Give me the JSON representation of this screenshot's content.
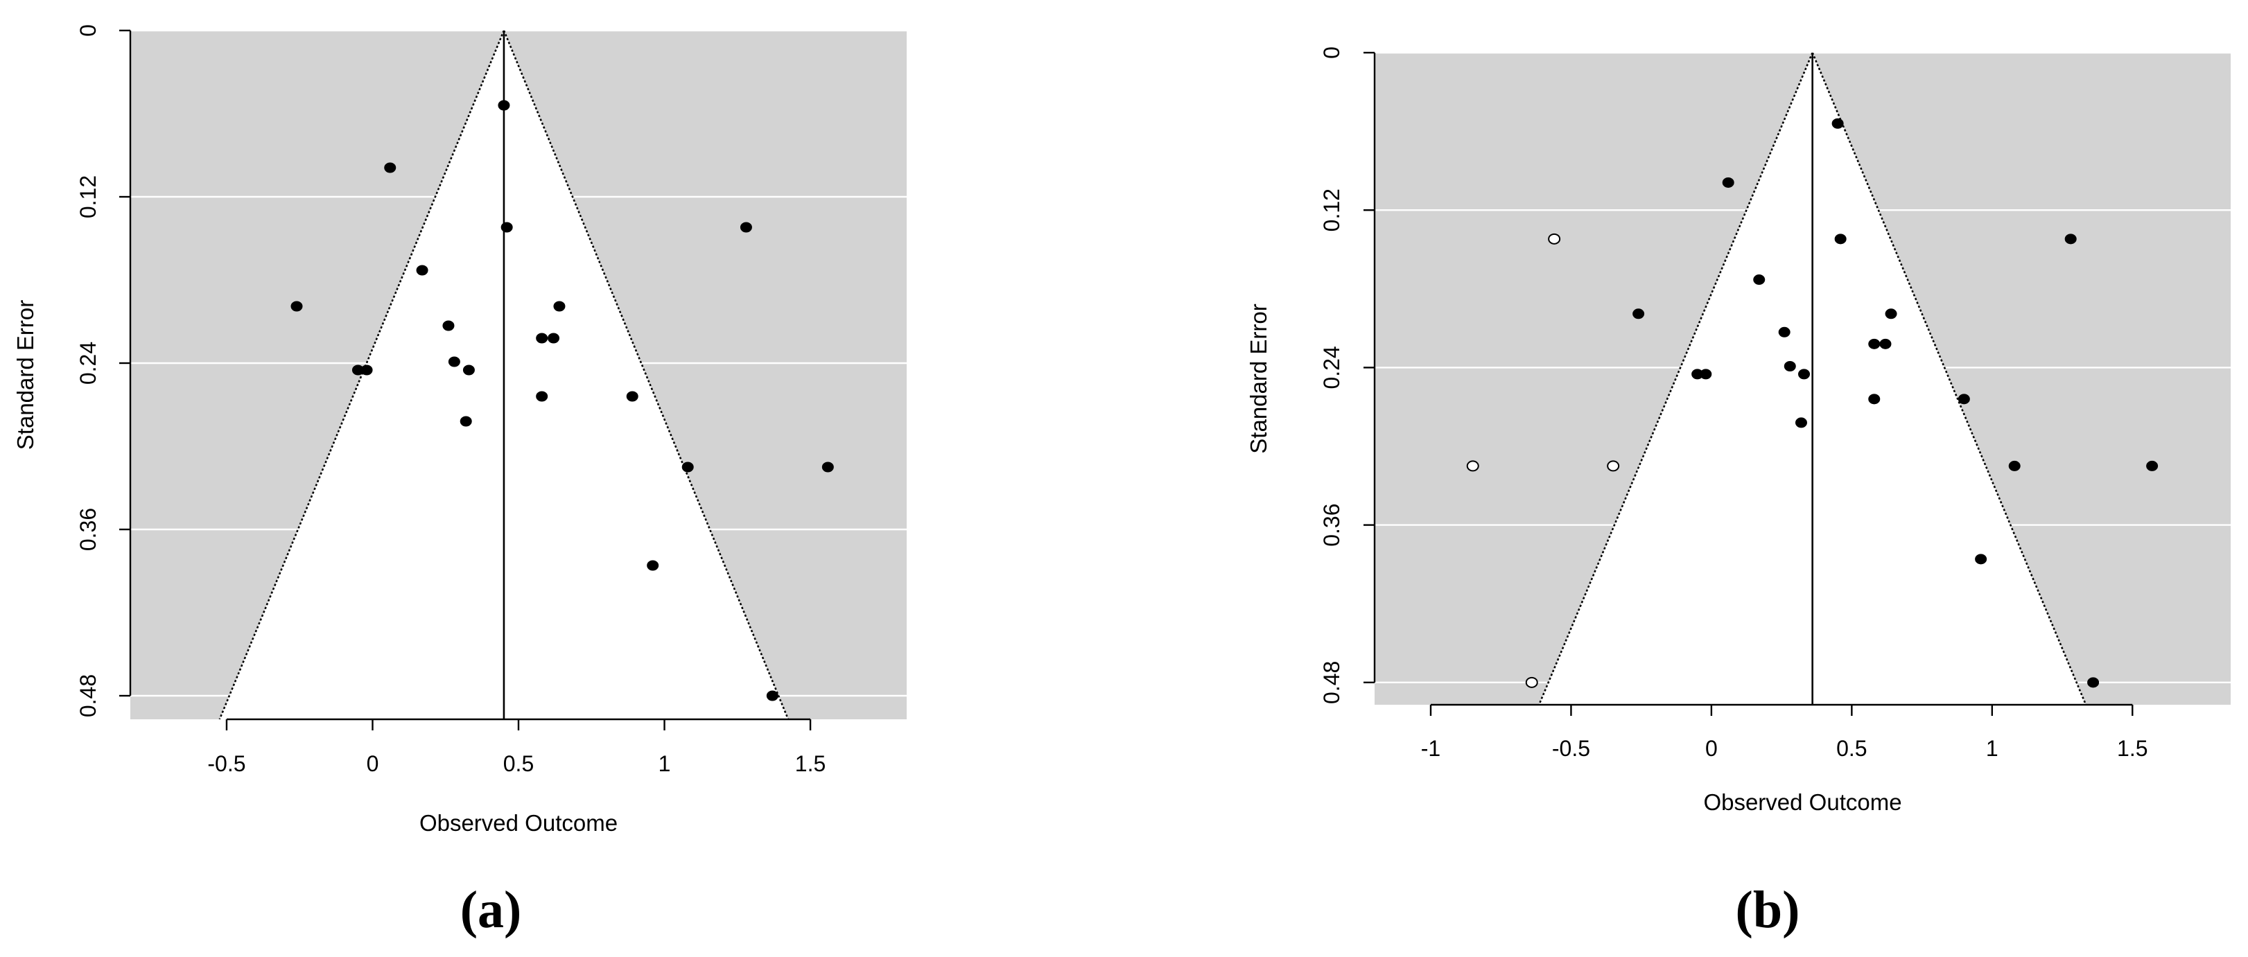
{
  "chart_data": [
    {
      "type": "scatter",
      "variant": "funnel",
      "panel_label": "(a)",
      "xlabel": "Observed Outcome",
      "ylabel": "Standard Error",
      "xlim": [
        -0.83,
        1.83
      ],
      "ylim": [
        0,
        0.497
      ],
      "y_reversed": true,
      "xticks": [
        -0.5,
        0,
        0.5,
        1,
        1.5
      ],
      "xtick_labels": [
        "-0.5",
        "0",
        "0.5",
        "1",
        "1.5"
      ],
      "yticks": [
        0,
        0.12,
        0.24,
        0.36,
        0.48
      ],
      "ytick_labels": [
        "0",
        "0.12",
        "0.24",
        "0.36",
        "0.48"
      ],
      "grid": "horizontal",
      "colors": {
        "background": "#d3d3d3",
        "funnel": "#ffffff",
        "observed": "#000000"
      },
      "funnel_center": 0.45,
      "funnel_z": 1.96,
      "series": [
        {
          "marker": "filled",
          "points": [
            {
              "x": 0.45,
              "y": 0.054
            },
            {
              "x": 0.06,
              "y": 0.099
            },
            {
              "x": 0.46,
              "y": 0.142
            },
            {
              "x": 1.28,
              "y": 0.142
            },
            {
              "x": 0.17,
              "y": 0.173
            },
            {
              "x": -0.26,
              "y": 0.199
            },
            {
              "x": 0.64,
              "y": 0.199
            },
            {
              "x": 0.26,
              "y": 0.213
            },
            {
              "x": 0.58,
              "y": 0.222
            },
            {
              "x": 0.62,
              "y": 0.222
            },
            {
              "x": 0.28,
              "y": 0.239
            },
            {
              "x": -0.05,
              "y": 0.245
            },
            {
              "x": -0.02,
              "y": 0.245
            },
            {
              "x": 0.33,
              "y": 0.245
            },
            {
              "x": 0.58,
              "y": 0.264
            },
            {
              "x": 0.89,
              "y": 0.264
            },
            {
              "x": 0.32,
              "y": 0.282
            },
            {
              "x": 1.08,
              "y": 0.315
            },
            {
              "x": 1.56,
              "y": 0.315
            },
            {
              "x": 0.96,
              "y": 0.386
            },
            {
              "x": 1.37,
              "y": 0.48
            }
          ]
        }
      ]
    },
    {
      "type": "scatter",
      "variant": "funnel",
      "panel_label": "(b)",
      "xlabel": "Observed Outcome",
      "ylabel": "Standard Error",
      "xlim": [
        -1.2,
        1.85
      ],
      "ylim": [
        0,
        0.497
      ],
      "y_reversed": true,
      "xticks": [
        -1,
        -0.5,
        0,
        0.5,
        1,
        1.5
      ],
      "xtick_labels": [
        "-1",
        "-0.5",
        "0",
        "0.5",
        "1",
        "1.5"
      ],
      "yticks": [
        0,
        0.12,
        0.24,
        0.36,
        0.48
      ],
      "ytick_labels": [
        "0",
        "0.12",
        "0.24",
        "0.36",
        "0.48"
      ],
      "grid": "horizontal",
      "colors": {
        "background": "#d3d3d3",
        "funnel": "#ffffff",
        "observed": "#000000",
        "imputed": "#ffffff"
      },
      "funnel_center": 0.36,
      "funnel_z": 1.96,
      "series": [
        {
          "marker": "filled",
          "points": [
            {
              "x": 0.45,
              "y": 0.054
            },
            {
              "x": 0.06,
              "y": 0.099
            },
            {
              "x": 0.46,
              "y": 0.142
            },
            {
              "x": 1.28,
              "y": 0.142
            },
            {
              "x": 0.17,
              "y": 0.173
            },
            {
              "x": -0.26,
              "y": 0.199
            },
            {
              "x": 0.64,
              "y": 0.199
            },
            {
              "x": 0.26,
              "y": 0.213
            },
            {
              "x": 0.58,
              "y": 0.222
            },
            {
              "x": 0.62,
              "y": 0.222
            },
            {
              "x": 0.28,
              "y": 0.239
            },
            {
              "x": -0.05,
              "y": 0.245
            },
            {
              "x": -0.02,
              "y": 0.245
            },
            {
              "x": 0.33,
              "y": 0.245
            },
            {
              "x": 0.58,
              "y": 0.264
            },
            {
              "x": 0.9,
              "y": 0.264
            },
            {
              "x": 0.32,
              "y": 0.282
            },
            {
              "x": 1.08,
              "y": 0.315
            },
            {
              "x": 1.57,
              "y": 0.315
            },
            {
              "x": 0.96,
              "y": 0.386
            },
            {
              "x": 1.36,
              "y": 0.48
            }
          ]
        },
        {
          "marker": "open",
          "points": [
            {
              "x": -0.56,
              "y": 0.142
            },
            {
              "x": -0.85,
              "y": 0.315
            },
            {
              "x": -0.35,
              "y": 0.315
            },
            {
              "x": -0.64,
              "y": 0.48
            }
          ]
        }
      ]
    }
  ]
}
